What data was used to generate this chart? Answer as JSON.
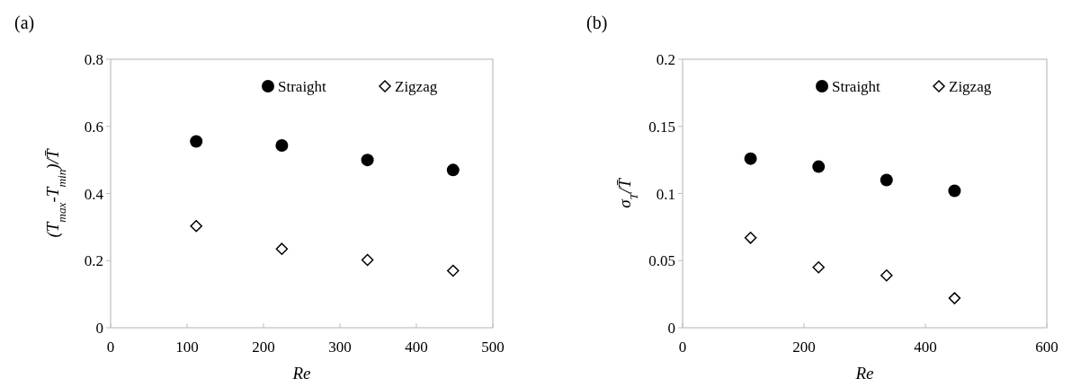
{
  "chart_data": [
    {
      "type": "scatter",
      "title": "(a)",
      "xlabel": "Re",
      "ylabel": "(T$_{max}$-T$_{min}$)/T̄",
      "xlim": [
        0,
        500
      ],
      "xticks": [
        0,
        100,
        200,
        300,
        400,
        500
      ],
      "ylim": [
        0,
        0.8
      ],
      "yticks": [
        0,
        0.2,
        0.4,
        0.6,
        0.8
      ],
      "grid": false,
      "legend": "top right",
      "series": [
        {
          "name": "Straight",
          "color": "#000000",
          "marker": "circle",
          "x": [
            112,
            224,
            336,
            448
          ],
          "values": [
            0.555,
            0.543,
            0.5,
            0.47
          ]
        },
        {
          "name": "Zigzag",
          "color": "#000000",
          "marker": "diamond",
          "x": [
            112,
            224,
            336,
            448
          ],
          "values": [
            0.303,
            0.235,
            0.202,
            0.17
          ]
        }
      ]
    },
    {
      "type": "scatter",
      "title": "(b)",
      "xlabel": "Re",
      "ylabel": "σ$_{T}$/T̄",
      "xlim": [
        0,
        600
      ],
      "xticks": [
        0,
        200,
        400,
        600
      ],
      "ylim": [
        0,
        0.2
      ],
      "yticks": [
        0,
        0.05,
        0.1,
        0.15,
        0.2
      ],
      "grid": false,
      "legend": "top right",
      "series": [
        {
          "name": "Straight",
          "color": "#000000",
          "marker": "circle",
          "x": [
            112,
            224,
            336,
            448
          ],
          "values": [
            0.126,
            0.12,
            0.11,
            0.102
          ]
        },
        {
          "name": "Zigzag",
          "color": "#000000",
          "marker": "diamond",
          "x": [
            112,
            224,
            336,
            448
          ],
          "values": [
            0.067,
            0.045,
            0.039,
            0.022
          ]
        }
      ]
    }
  ]
}
